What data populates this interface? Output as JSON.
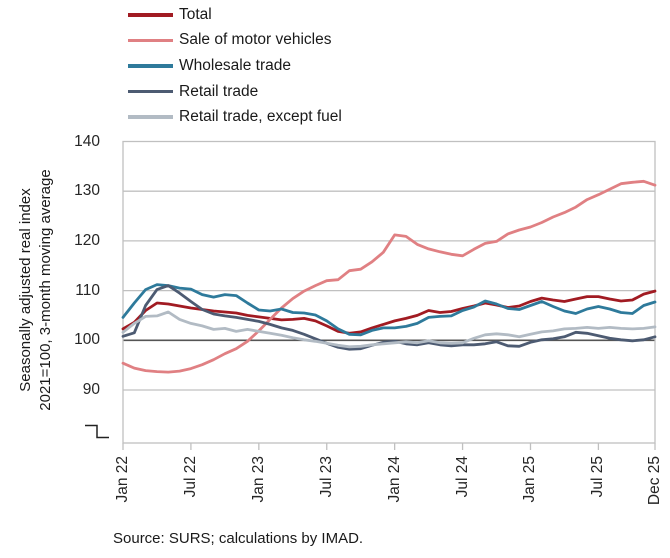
{
  "source_note": "Source: SURS; calculations by IMAD.",
  "y_axis": {
    "title_line1": "Seasonally adjusted real index",
    "title_line2": "2021=100, 3-month moving average"
  },
  "chart_data": {
    "type": "line",
    "title": "",
    "xlabel": "",
    "ylabel": "Seasonally adjusted real index 2021=100, 3-month moving average",
    "ylim": [
      79,
      140
    ],
    "yticks": [
      140,
      130,
      120,
      110,
      100,
      90
    ],
    "gridlines": [
      130,
      120,
      110,
      90
    ],
    "baseline": 100,
    "axis_break": true,
    "grid": true,
    "legend_position": "top-left",
    "colors": {
      "gridline": "#C0C0C0",
      "baseline_line": "#555555",
      "axis_break_mark": "#222222",
      "text": "#1A1A1A"
    },
    "x_tick_labels": [
      "Jan 22",
      "Jul 22",
      "Jan 23",
      "Jul 23",
      "Jan 24",
      "Jul 24",
      "Jan 25",
      "Jul 25",
      "Dec 25"
    ],
    "x_tick_indices": [
      0,
      6,
      12,
      18,
      24,
      30,
      36,
      42,
      47
    ],
    "x": [
      "Jan 22",
      "Feb 22",
      "Mar 22",
      "Apr 22",
      "May 22",
      "Jun 22",
      "Jul 22",
      "Aug 22",
      "Sep 22",
      "Oct 22",
      "Nov 22",
      "Dec 22",
      "Jan 23",
      "Feb 23",
      "Mar 23",
      "Apr 23",
      "May 23",
      "Jun 23",
      "Jul 23",
      "Aug 23",
      "Sep 23",
      "Oct 23",
      "Nov 23",
      "Dec 23",
      "Jan 24",
      "Feb 24",
      "Mar 24",
      "Apr 24",
      "May 24",
      "Jun 24",
      "Jul 24",
      "Aug 24",
      "Sep 24",
      "Oct 24",
      "Nov 24",
      "Dec 24",
      "Jan 25",
      "Feb 25",
      "Mar 25",
      "Apr 25",
      "May 25",
      "Jun 25",
      "Jul 25",
      "Aug 25",
      "Sep 25",
      "Oct 25",
      "Nov 25",
      "Dec 25"
    ],
    "series": [
      {
        "id": "total",
        "name": "Total",
        "color": "#A11B22",
        "values": [
          102.3,
          103.6,
          106.0,
          107.5,
          107.3,
          106.9,
          106.5,
          106.2,
          105.9,
          105.7,
          105.5,
          105.0,
          104.7,
          104.4,
          104.1,
          104.2,
          104.4,
          103.9,
          102.9,
          101.8,
          101.4,
          101.7,
          102.5,
          103.2,
          103.9,
          104.4,
          105.0,
          106.0,
          105.6,
          105.8,
          106.4,
          106.9,
          107.5,
          107.1,
          106.6,
          106.9,
          107.8,
          108.5,
          108.1,
          107.8,
          108.3,
          108.8,
          108.8,
          108.3,
          107.9,
          108.1,
          109.3,
          109.9
        ]
      },
      {
        "id": "motor-vehicles",
        "name": "Sale of motor vehicles",
        "color": "#E08083",
        "values": [
          95.4,
          94.4,
          93.9,
          93.7,
          93.6,
          93.8,
          94.3,
          95.1,
          96.1,
          97.3,
          98.3,
          99.8,
          101.9,
          104.2,
          106.5,
          108.4,
          109.9,
          111.0,
          112.0,
          112.2,
          114.0,
          114.3,
          115.8,
          117.7,
          121.2,
          120.9,
          119.3,
          118.4,
          117.8,
          117.3,
          117.0,
          118.3,
          119.5,
          119.9,
          121.4,
          122.2,
          122.8,
          123.7,
          124.8,
          125.7,
          126.8,
          128.3,
          129.3,
          130.4,
          131.5,
          131.8,
          132.0,
          131.2
        ]
      },
      {
        "id": "wholesale",
        "name": "Wholesale trade",
        "color": "#2E7A9B",
        "values": [
          104.6,
          107.5,
          110.2,
          111.2,
          111.0,
          110.5,
          110.3,
          109.2,
          108.7,
          109.2,
          109.0,
          107.5,
          106.1,
          105.9,
          106.3,
          105.6,
          105.5,
          105.1,
          103.9,
          102.3,
          101.2,
          101.1,
          102.0,
          102.5,
          102.5,
          102.8,
          103.4,
          104.6,
          104.8,
          104.9,
          106.0,
          106.7,
          107.9,
          107.3,
          106.4,
          106.2,
          107.0,
          107.8,
          106.8,
          105.9,
          105.4,
          106.3,
          106.8,
          106.3,
          105.6,
          105.4,
          107.0,
          107.7
        ]
      },
      {
        "id": "retail",
        "name": "Retail trade",
        "color": "#4D5B72",
        "values": [
          100.8,
          101.5,
          107.0,
          110.2,
          111.0,
          109.5,
          107.8,
          106.2,
          105.3,
          104.9,
          104.6,
          104.2,
          103.8,
          103.2,
          102.5,
          102.0,
          101.2,
          100.3,
          99.4,
          98.6,
          98.2,
          98.3,
          99.0,
          99.6,
          99.8,
          99.3,
          99.1,
          99.5,
          99.1,
          98.9,
          99.1,
          99.1,
          99.3,
          99.7,
          98.9,
          98.8,
          99.6,
          100.1,
          100.3,
          100.7,
          101.6,
          101.4,
          100.9,
          100.4,
          100.1,
          99.9,
          100.1,
          100.7
        ]
      },
      {
        "id": "retail-except-fuel",
        "name": "Retail trade, except fuel",
        "color": "#B2BBC4",
        "values": [
          101.6,
          103.4,
          104.8,
          104.9,
          105.7,
          104.2,
          103.4,
          102.9,
          102.2,
          102.4,
          101.8,
          102.2,
          101.8,
          101.4,
          101.0,
          100.5,
          100.1,
          99.8,
          99.4,
          99.0,
          98.7,
          98.8,
          99.1,
          99.3,
          99.5,
          99.7,
          99.5,
          99.9,
          99.5,
          99.4,
          99.5,
          100.4,
          101.1,
          101.3,
          101.1,
          100.7,
          101.2,
          101.7,
          101.9,
          102.3,
          102.4,
          102.6,
          102.4,
          102.6,
          102.4,
          102.3,
          102.4,
          102.7
        ]
      }
    ]
  }
}
